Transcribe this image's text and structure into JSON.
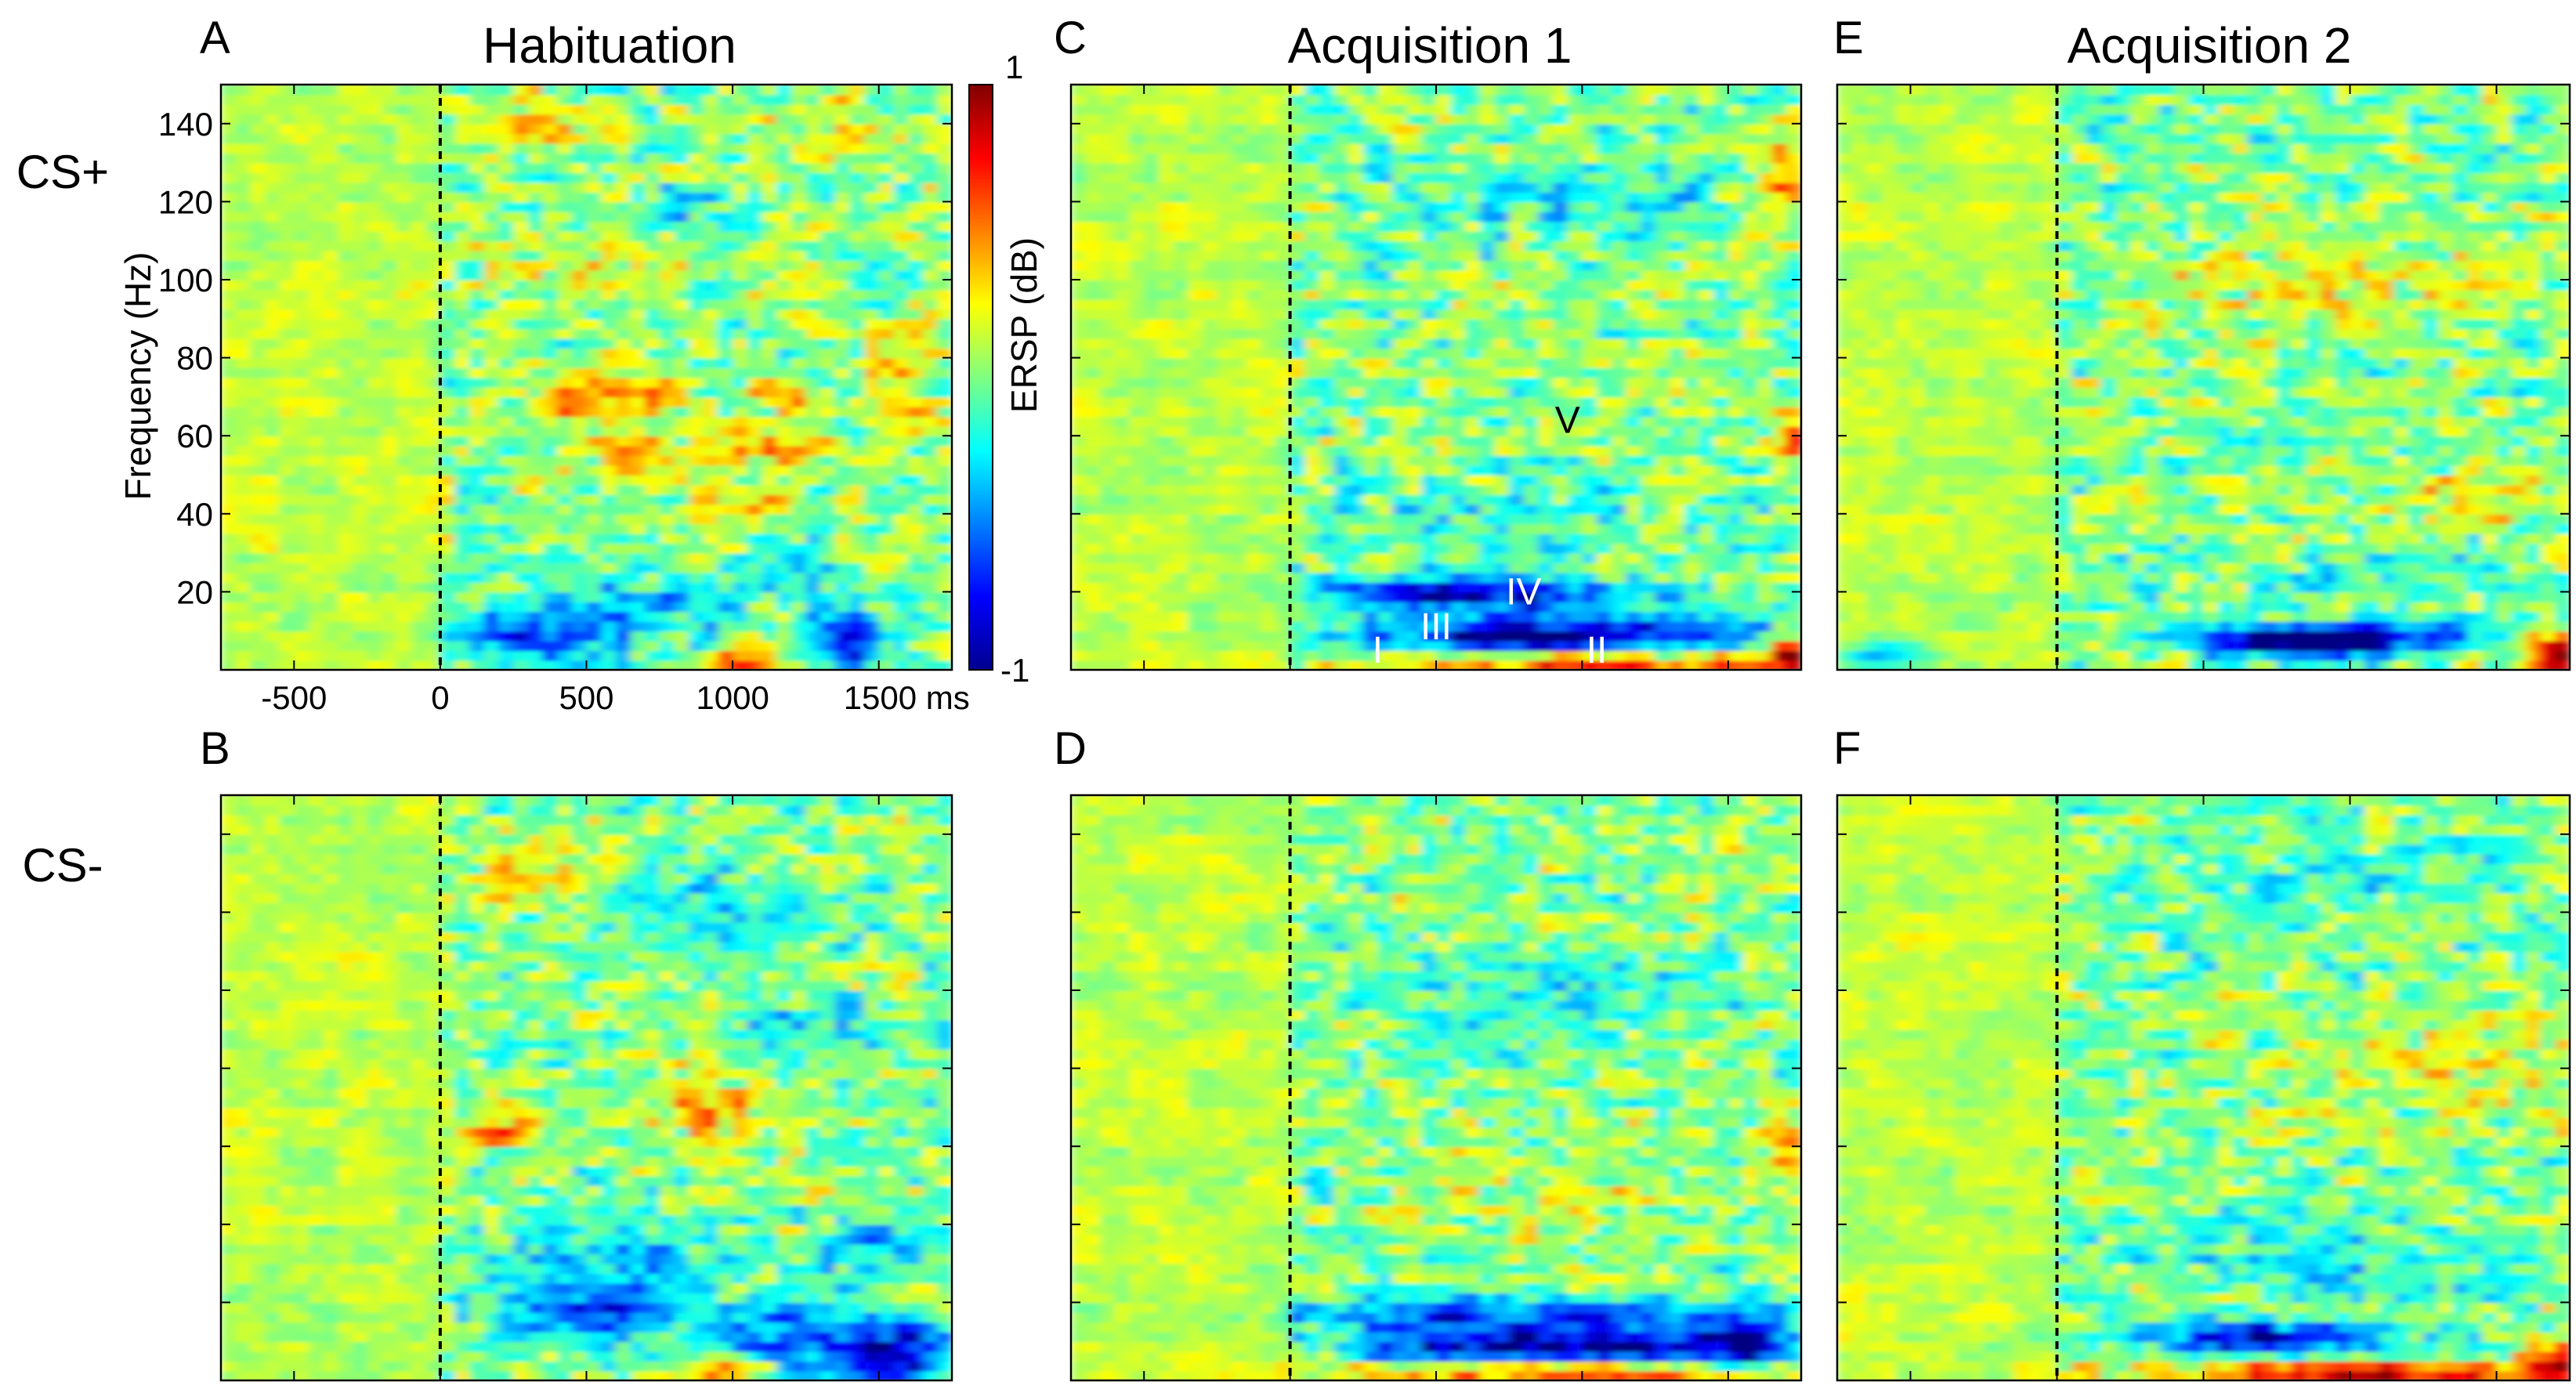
{
  "chart_data": {
    "type": "heatmap",
    "colormap": "jet",
    "x_unit": "ms",
    "x_range": [
      -750,
      1750
    ],
    "y_range": [
      0,
      150
    ],
    "x_ticks": [
      {
        "v": -500,
        "label": "-500"
      },
      {
        "v": 0,
        "label": "0"
      },
      {
        "v": 500,
        "label": "500"
      },
      {
        "v": 1000,
        "label": "1000"
      },
      {
        "v": 1500,
        "label": "1500 ms"
      }
    ],
    "y_ticks": [
      {
        "v": 20,
        "label": "20"
      },
      {
        "v": 40,
        "label": "40"
      },
      {
        "v": 60,
        "label": "60"
      },
      {
        "v": 80,
        "label": "80"
      },
      {
        "v": 100,
        "label": "100"
      },
      {
        "v": 120,
        "label": "120"
      },
      {
        "v": 140,
        "label": "140"
      }
    ],
    "ylabel": "Frequency (Hz)",
    "stimulus_onset_ms": 0,
    "colorbar": {
      "label": "ERSP (dB)",
      "min": -1,
      "max": 1,
      "min_label": "-1",
      "max_label": "1"
    },
    "rows": [
      {
        "id": "cs_plus",
        "label": "CS+"
      },
      {
        "id": "cs_minus",
        "label": "CS-"
      }
    ],
    "columns": [
      {
        "id": "hab",
        "title": "Habituation"
      },
      {
        "id": "acq1",
        "title": "Acquisition 1"
      },
      {
        "id": "acq2",
        "title": "Acquisition 2"
      }
    ],
    "panels": [
      {
        "letter": "A",
        "row": "cs_plus",
        "column": "hab",
        "blobs": [
          {
            "t": 450,
            "f": 70,
            "st": 110,
            "sf": 4,
            "v": 0.45
          },
          {
            "t": 700,
            "f": 70,
            "st": 120,
            "sf": 4,
            "v": 0.4
          },
          {
            "t": 1150,
            "f": 72,
            "st": 90,
            "sf": 4,
            "v": 0.4
          },
          {
            "t": 1150,
            "f": 56,
            "st": 140,
            "sf": 4,
            "v": 0.4
          },
          {
            "t": 700,
            "f": 56,
            "st": 160,
            "sf": 4,
            "v": 0.3
          },
          {
            "t": 1050,
            "f": 42,
            "st": 100,
            "sf": 4,
            "v": 0.4
          },
          {
            "t": 350,
            "f": 140,
            "st": 130,
            "sf": 5,
            "v": 0.3
          },
          {
            "t": 1400,
            "f": 138,
            "st": 140,
            "sf": 6,
            "v": 0.35
          },
          {
            "t": 1600,
            "f": 75,
            "st": 100,
            "sf": 10,
            "v": 0.3
          },
          {
            "t": 300,
            "f": 9,
            "st": 200,
            "sf": 6,
            "v": -0.55
          },
          {
            "t": 650,
            "f": 15,
            "st": 250,
            "sf": 6,
            "v": -0.35
          },
          {
            "t": 1400,
            "f": 8,
            "st": 110,
            "sf": 5,
            "v": -0.8
          },
          {
            "t": 1200,
            "f": 25,
            "st": 200,
            "sf": 5,
            "v": -0.3
          },
          {
            "t": 1000,
            "f": 2,
            "st": 90,
            "sf": 2.5,
            "v": 0.6
          },
          {
            "t": 900,
            "f": 118,
            "st": 140,
            "sf": 4,
            "v": -0.3
          },
          {
            "t": 500,
            "f": 105,
            "st": 170,
            "sf": 5,
            "v": 0.25
          }
        ]
      },
      {
        "letter": "B",
        "row": "cs_minus",
        "column": "hab",
        "blobs": [
          {
            "t": 200,
            "f": 65,
            "st": 80,
            "sf": 4,
            "v": 0.45
          },
          {
            "t": 950,
            "f": 70,
            "st": 160,
            "sf": 7,
            "v": 0.35
          },
          {
            "t": 900,
            "f": 120,
            "st": 250,
            "sf": 8,
            "v": -0.3
          },
          {
            "t": 600,
            "f": 30,
            "st": 260,
            "sf": 8,
            "v": -0.35
          },
          {
            "t": 500,
            "f": 18,
            "st": 160,
            "sf": 5,
            "v": -0.55
          },
          {
            "t": 1100,
            "f": 12,
            "st": 200,
            "sf": 6,
            "v": -0.5
          },
          {
            "t": 1550,
            "f": 7,
            "st": 200,
            "sf": 6,
            "v": -0.85
          },
          {
            "t": 950,
            "f": 3,
            "st": 130,
            "sf": 3,
            "v": 0.55
          },
          {
            "t": 1450,
            "f": 33,
            "st": 120,
            "sf": 5,
            "v": -0.4
          },
          {
            "t": 400,
            "f": 130,
            "st": 200,
            "sf": 6,
            "v": 0.25
          },
          {
            "t": 1300,
            "f": 90,
            "st": 200,
            "sf": 6,
            "v": -0.25
          }
        ]
      },
      {
        "letter": "C",
        "row": "cs_plus",
        "column": "acq1",
        "annotations": [
          {
            "text": "I",
            "t": 300,
            "f": 5,
            "color": "#ffffff"
          },
          {
            "text": "II",
            "t": 1050,
            "f": 5,
            "color": "#ffffff"
          },
          {
            "text": "III",
            "t": 500,
            "f": 11,
            "color": "#ffffff"
          },
          {
            "text": "IV",
            "t": 800,
            "f": 20,
            "color": "#ffffff"
          },
          {
            "text": "V",
            "t": 950,
            "f": 64,
            "color": "#000000"
          }
        ],
        "blobs": [
          {
            "t": 900,
            "f": 9,
            "st": 450,
            "sf": 3.5,
            "v": -1.0
          },
          {
            "t": 450,
            "f": 20,
            "st": 250,
            "sf": 3,
            "v": -0.7
          },
          {
            "t": 900,
            "f": 19,
            "st": 350,
            "sf": 3,
            "v": -0.5
          },
          {
            "t": 1100,
            "f": 2,
            "st": 600,
            "sf": 2,
            "v": 0.7
          },
          {
            "t": 1720,
            "f": 4,
            "st": 60,
            "sf": 3,
            "v": 0.9
          },
          {
            "t": 1700,
            "f": 125,
            "st": 80,
            "sf": 8,
            "v": 0.4
          },
          {
            "t": 1720,
            "f": 60,
            "st": 40,
            "sf": 4,
            "v": 0.6
          },
          {
            "t": 900,
            "f": 40,
            "st": 500,
            "sf": 6,
            "v": -0.15
          },
          {
            "t": 1000,
            "f": 120,
            "st": 400,
            "sf": 8,
            "v": -0.2
          }
        ]
      },
      {
        "letter": "D",
        "row": "cs_minus",
        "column": "acq1",
        "blobs": [
          {
            "t": 900,
            "f": 9,
            "st": 450,
            "sf": 3,
            "v": -1.0
          },
          {
            "t": 800,
            "f": 17,
            "st": 500,
            "sf": 3,
            "v": -0.7
          },
          {
            "t": 1550,
            "f": 10,
            "st": 120,
            "sf": 5,
            "v": -0.7
          },
          {
            "t": 900,
            "f": 2,
            "st": 600,
            "sf": 2,
            "v": 0.6
          },
          {
            "t": 1700,
            "f": 60,
            "st": 60,
            "sf": 5,
            "v": 0.5
          },
          {
            "t": 1000,
            "f": 100,
            "st": 400,
            "sf": 8,
            "v": -0.2
          },
          {
            "t": 1000,
            "f": 50,
            "st": 400,
            "sf": 8,
            "v": 0.15
          }
        ]
      },
      {
        "letter": "E",
        "row": "cs_plus",
        "column": "acq2",
        "blobs": [
          {
            "t": 800,
            "f": 8,
            "st": 250,
            "sf": 3,
            "v": -1.0
          },
          {
            "t": 1100,
            "f": 9,
            "st": 250,
            "sf": 3,
            "v": -0.5
          },
          {
            "t": 1700,
            "f": 4,
            "st": 80,
            "sf": 4,
            "v": 0.85
          },
          {
            "t": 1500,
            "f": 45,
            "st": 250,
            "sf": 5,
            "v": 0.25
          },
          {
            "t": -600,
            "f": 4,
            "st": 100,
            "sf": 3,
            "v": -0.5
          },
          {
            "t": 1000,
            "f": 25,
            "st": 400,
            "sf": 4,
            "v": -0.15
          },
          {
            "t": 1000,
            "f": 100,
            "st": 500,
            "sf": 10,
            "v": 0.2
          }
        ]
      },
      {
        "letter": "F",
        "row": "cs_minus",
        "column": "acq2",
        "blobs": [
          {
            "t": 700,
            "f": 11,
            "st": 300,
            "sf": 3,
            "v": -0.85
          },
          {
            "t": 1100,
            "f": 2,
            "st": 500,
            "sf": 2,
            "v": 0.95
          },
          {
            "t": 1700,
            "f": 4,
            "st": 80,
            "sf": 4,
            "v": 0.6
          },
          {
            "t": 1000,
            "f": 30,
            "st": 500,
            "sf": 6,
            "v": -0.2
          },
          {
            "t": 1300,
            "f": 80,
            "st": 400,
            "sf": 10,
            "v": 0.2
          },
          {
            "t": 1000,
            "f": 130,
            "st": 500,
            "sf": 8,
            "v": -0.15
          }
        ]
      }
    ]
  }
}
